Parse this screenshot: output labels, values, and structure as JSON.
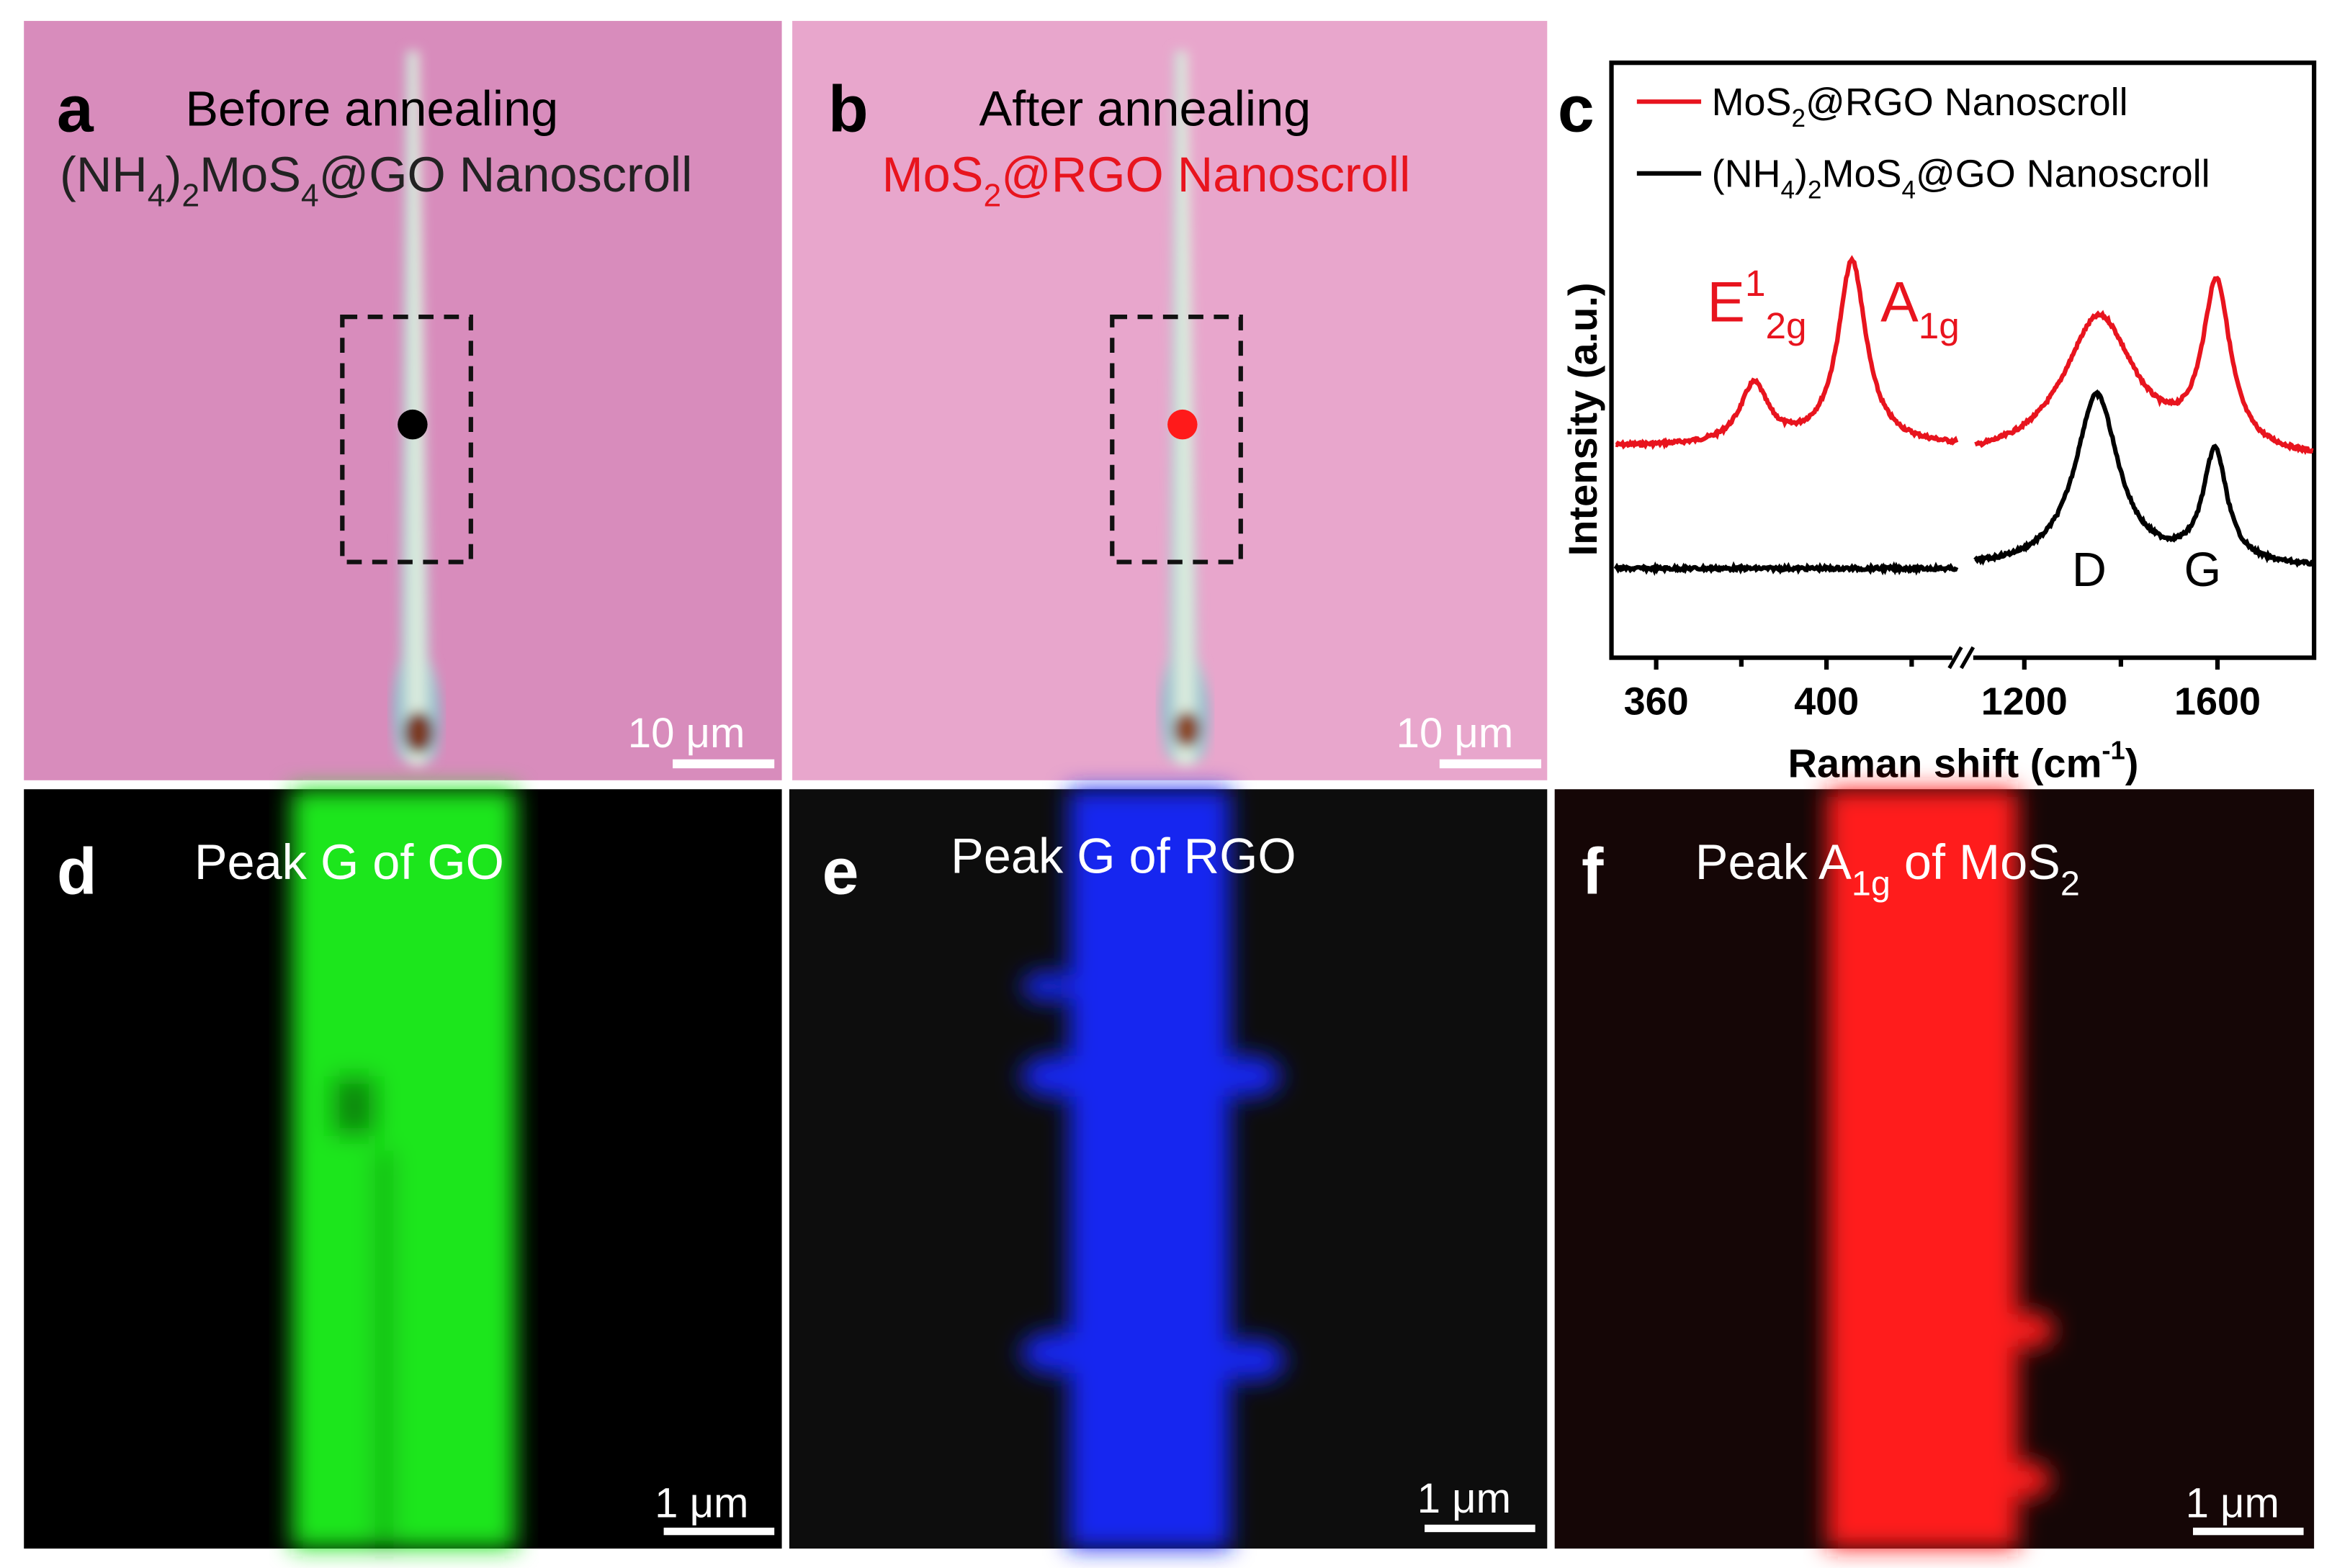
{
  "colors": {
    "red": "#e8141e",
    "black": "#000000",
    "green": "#1ee61e",
    "blue": "#1428f0",
    "pink_a": "#d88cbc",
    "pink_b": "#e8a6cc"
  },
  "panels": {
    "a": {
      "letter": "a",
      "title": "Before annealing",
      "subtitle": [
        {
          "t": "(NH"
        },
        {
          "t": "4",
          "sub": true
        },
        {
          "t": ")"
        },
        {
          "t": "2",
          "sub": true
        },
        {
          "t": "MoS"
        },
        {
          "t": "4",
          "sub": true
        },
        {
          "t": "@GO Nanoscroll"
        }
      ],
      "scale": "10 μm"
    },
    "b": {
      "letter": "b",
      "title": "After annealing",
      "subtitle": [
        {
          "t": "MoS"
        },
        {
          "t": "2",
          "sub": true
        },
        {
          "t": "@RGO Nanoscroll"
        }
      ],
      "scale": "10 μm"
    },
    "c": {
      "letter": "c"
    },
    "d": {
      "letter": "d",
      "title": [
        {
          "t": "Peak G of GO"
        }
      ],
      "scale": "1 μm"
    },
    "e": {
      "letter": "e",
      "title": [
        {
          "t": "Peak G of  RGO"
        }
      ],
      "scale": "1 μm"
    },
    "f": {
      "letter": "f",
      "title": [
        {
          "t": "Peak A"
        },
        {
          "t": "1g",
          "sub": true
        },
        {
          "t": " of MoS"
        },
        {
          "t": "2",
          "sub": true
        }
      ],
      "scale": "1 μm"
    }
  },
  "chart_data": {
    "type": "line",
    "xlabel": [
      {
        "t": "Raman shift (cm"
      },
      {
        "t": "-1",
        "sup": true
      },
      {
        "t": ")"
      }
    ],
    "ylabel": "Intensity (a.u.)",
    "x_broken_axis": true,
    "xlim_left": [
      349.5,
      432
    ],
    "xlim_right": [
      1088,
      1800
    ],
    "ylim": [
      0,
      100
    ],
    "xticks_left": [
      360,
      400
    ],
    "xticks_right": [
      1200,
      1600
    ],
    "minor_ticks_left": [
      380,
      420
    ],
    "minor_ticks_right": [
      1400
    ],
    "legend_position": "top",
    "series": [
      {
        "name": [
          {
            "t": "MoS"
          },
          {
            "t": "2",
            "sub": true
          },
          {
            "t": "@RGO Nanoscroll"
          }
        ],
        "color": "#e8141e",
        "left": {
          "baseline": 35.5,
          "peaks": [
            {
              "center": 383,
              "height": 10,
              "hwhm": 4
            },
            {
              "center": 406,
              "height": 31,
              "hwhm": 4
            }
          ]
        },
        "right": {
          "baseline": 33,
          "peaks": [
            {
              "center": 1355,
              "height": 24,
              "hwhm": 90
            },
            {
              "center": 1598,
              "height": 28,
              "hwhm": 35
            }
          ]
        }
      },
      {
        "name": [
          {
            "t": "(NH"
          },
          {
            "t": "4",
            "sub": true
          },
          {
            "t": ")"
          },
          {
            "t": "2",
            "sub": true
          },
          {
            "t": "MoS"
          },
          {
            "t": "4",
            "sub": true
          },
          {
            "t": "@GO Nanoscroll"
          }
        ],
        "color": "#000000",
        "left": {
          "baseline": 15,
          "peaks": []
        },
        "right": {
          "baseline": 15,
          "peaks": [
            {
              "center": 1350,
              "height": 29,
              "hwhm": 55
            },
            {
              "center": 1595,
              "height": 19,
              "hwhm": 30
            }
          ]
        }
      }
    ],
    "annotations": {
      "e2g": [
        {
          "t": "E"
        },
        {
          "t": "1",
          "sup": true
        },
        {
          "t": "2g",
          "sub": true
        }
      ],
      "a1g": [
        {
          "t": "A"
        },
        {
          "t": "1g",
          "sub": true
        }
      ],
      "d": "D",
      "g": "G"
    }
  }
}
